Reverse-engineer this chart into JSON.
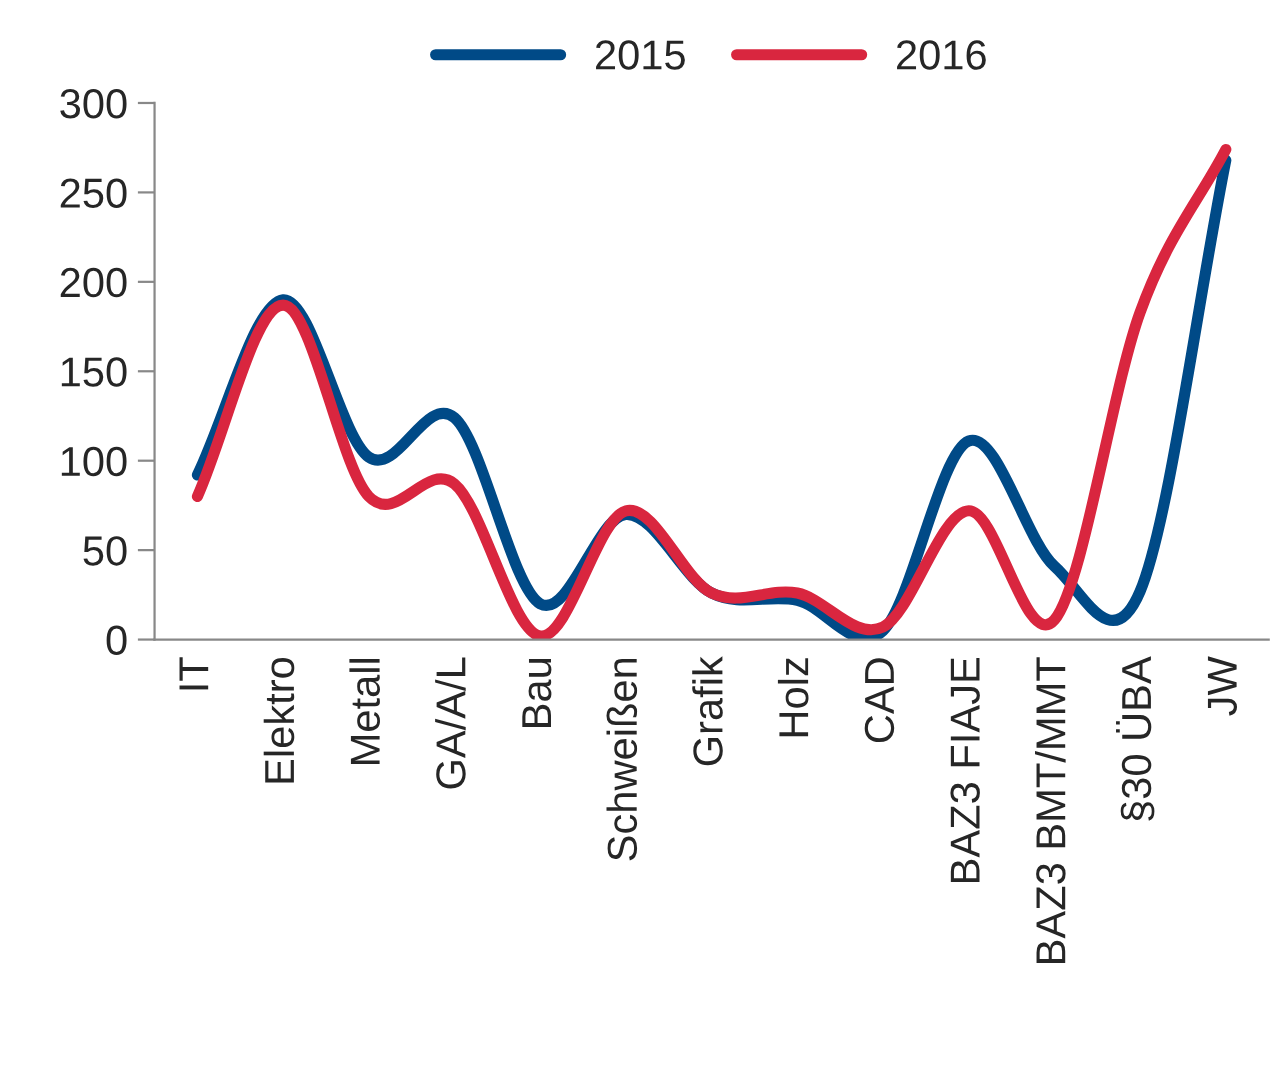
{
  "chart_data": {
    "type": "line",
    "categories": [
      "IT",
      "Elektro",
      "Metall",
      "GA/A/L",
      "Bau",
      "Schweißen",
      "Grafik",
      "Holz",
      "CAD",
      "BAZ3 FIAJE",
      "BAZ3 BMT/MMT",
      "§30 ÜBA",
      "JW"
    ],
    "series": [
      {
        "name": "2015",
        "color": "#004a87",
        "values": [
          92,
          190,
          102,
          124,
          20,
          70,
          26,
          22,
          5,
          111,
          41,
          27,
          268
        ]
      },
      {
        "name": "2016",
        "color": "#d9263f",
        "values": [
          80,
          187,
          80,
          87,
          2,
          72,
          26,
          26,
          7,
          72,
          11,
          183,
          274
        ]
      }
    ],
    "ylim": [
      0,
      300
    ],
    "yticks": [
      0,
      50,
      100,
      150,
      200,
      250,
      300
    ],
    "grid": false,
    "legend": "top",
    "marker": "none",
    "line_style": "solid"
  }
}
